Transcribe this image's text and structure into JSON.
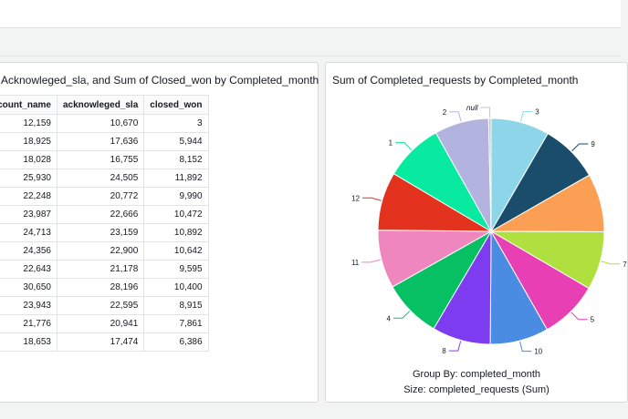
{
  "table_panel": {
    "title": "f Acknowleged_sla, and Sum of Closed_won by Completed_month",
    "columns": [
      "ccount_name",
      "acknowleged_sla",
      "closed_won"
    ],
    "rows": [
      [
        "12,159",
        "10,670",
        "3"
      ],
      [
        "18,925",
        "17,636",
        "5,944"
      ],
      [
        "18,028",
        "16,755",
        "8,152"
      ],
      [
        "25,930",
        "24,505",
        "11,892"
      ],
      [
        "22,248",
        "20,772",
        "9,990"
      ],
      [
        "23,987",
        "22,666",
        "10,472"
      ],
      [
        "24,713",
        "23,159",
        "10,892"
      ],
      [
        "24,356",
        "22,900",
        "10,642"
      ],
      [
        "22,643",
        "21,178",
        "9,595"
      ],
      [
        "30,650",
        "28,196",
        "10,400"
      ],
      [
        "23,943",
        "22,595",
        "8,915"
      ],
      [
        "21,776",
        "20,941",
        "7,861"
      ],
      [
        "18,653",
        "17,474",
        "6,386"
      ]
    ]
  },
  "pie_panel": {
    "title": "Sum of Completed_requests by Completed_month",
    "group_by": "Group By: completed_month",
    "size_by": "Size: completed_requests (Sum)"
  },
  "chart_data": {
    "type": "pie",
    "title": "Sum of Completed_requests by Completed_month",
    "slices": [
      {
        "label": "3",
        "value": 7.2,
        "color": "#8dd6ea"
      },
      {
        "label": "9",
        "value": 7.2,
        "color": "#1a4d6b"
      },
      {
        "label": "",
        "value": 7.2,
        "color": "#fb9f55"
      },
      {
        "label": "7",
        "value": 7.2,
        "color": "#b0e03f"
      },
      {
        "label": "5",
        "value": 7.2,
        "color": "#e93fb4"
      },
      {
        "label": "10",
        "value": 7.2,
        "color": "#4a8ce2"
      },
      {
        "label": "8",
        "value": 7.2,
        "color": "#7e3cf0"
      },
      {
        "label": "4",
        "value": 7.2,
        "color": "#08c064"
      },
      {
        "label": "11",
        "value": 7.2,
        "color": "#f086be"
      },
      {
        "label": "12",
        "value": 7.2,
        "color": "#e3331f"
      },
      {
        "label": "1",
        "value": 7.2,
        "color": "#08eaa0"
      },
      {
        "label": "2",
        "value": 6.7,
        "color": "#b3b3e0"
      },
      {
        "label": "null",
        "value": 0.3,
        "color": "#c6c6c6"
      }
    ]
  }
}
